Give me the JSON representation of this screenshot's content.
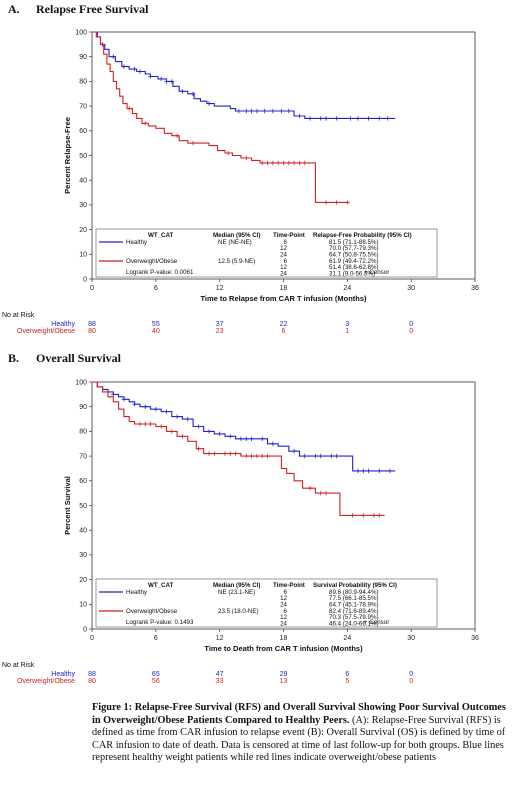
{
  "chart_data": [
    {
      "type": "line",
      "panel_letter": "A.",
      "panel_title": "Relapse Free Survival",
      "xlabel": "Time to Relapse from CAR T infusion (Months)",
      "ylabel": "Percent Relapse-Free",
      "xlim": [
        0,
        36
      ],
      "ylim": [
        0,
        100
      ],
      "xticks": [
        0,
        6,
        12,
        18,
        24,
        30,
        36
      ],
      "yticks": [
        0,
        10,
        20,
        30,
        40,
        50,
        60,
        70,
        80,
        90,
        100
      ],
      "grid": false,
      "colors": {
        "Healthy": "#2222cc",
        "Overweight/Obese": "#cc2222"
      },
      "series": [
        {
          "name": "Healthy",
          "color": "#2222cc",
          "steps": [
            [
              0,
              100
            ],
            [
              0.5,
              98
            ],
            [
              0.8,
              95
            ],
            [
              1.2,
              93
            ],
            [
              1.6,
              90
            ],
            [
              2.2,
              88
            ],
            [
              2.8,
              86
            ],
            [
              3.5,
              85
            ],
            [
              4.2,
              84
            ],
            [
              5,
              83
            ],
            [
              5.5,
              82
            ],
            [
              6.2,
              81
            ],
            [
              7,
              80
            ],
            [
              7.6,
              78
            ],
            [
              8.2,
              76
            ],
            [
              9,
              75
            ],
            [
              9.6,
              73
            ],
            [
              10.2,
              72
            ],
            [
              10.8,
              71
            ],
            [
              11.5,
              70
            ],
            [
              12.2,
              70
            ],
            [
              13,
              69
            ],
            [
              13.5,
              68
            ],
            [
              14.5,
              68
            ],
            [
              16,
              68
            ],
            [
              19,
              66
            ],
            [
              20,
              65
            ],
            [
              28.5,
              65
            ]
          ],
          "censor": [
            1,
            2,
            3,
            4,
            4.5,
            5.5,
            6.5,
            7,
            7.5,
            8.5,
            9.5,
            11,
            13.8,
            14.5,
            15,
            15.5,
            16.2,
            17,
            17.8,
            18.5,
            19.5,
            20.5,
            21.5,
            22,
            23,
            24.3,
            25,
            26,
            27,
            27.8
          ]
        },
        {
          "name": "Overweight/Obese",
          "color": "#cc2222",
          "steps": [
            [
              0,
              100
            ],
            [
              0.4,
              98
            ],
            [
              0.8,
              95
            ],
            [
              1.1,
              91
            ],
            [
              1.4,
              87
            ],
            [
              1.7,
              84
            ],
            [
              2,
              80
            ],
            [
              2.3,
              77
            ],
            [
              2.6,
              74
            ],
            [
              2.9,
              71
            ],
            [
              3.3,
              69
            ],
            [
              3.8,
              67
            ],
            [
              4.2,
              65
            ],
            [
              4.7,
              63
            ],
            [
              5.3,
              62
            ],
            [
              6,
              61
            ],
            [
              6.8,
              59
            ],
            [
              7.5,
              58
            ],
            [
              8.2,
              56
            ],
            [
              9,
              55
            ],
            [
              10,
              55
            ],
            [
              11,
              54
            ],
            [
              11.8,
              52
            ],
            [
              12.5,
              51
            ],
            [
              13.2,
              50
            ],
            [
              14,
              49
            ],
            [
              15,
              48
            ],
            [
              15.8,
              47
            ],
            [
              20.5,
              47
            ],
            [
              21,
              31
            ],
            [
              24.2,
              31
            ]
          ],
          "censor": [
            3.5,
            5,
            8,
            9.5,
            12.8,
            14.5,
            16,
            16.5,
            17,
            17.5,
            18,
            18.5,
            19,
            19.5,
            20,
            22,
            23,
            24
          ]
        }
      ],
      "legend": {
        "header": [
          "WT_CAT",
          "Median (95% CI)",
          "Time-Point",
          "Relapse-Free Probability (95% CI)"
        ],
        "rows": [
          {
            "group": "Healthy",
            "median": "NE (NE-NE)",
            "tp": [
              "6",
              "12",
              "24"
            ],
            "prob": [
              "81.5 (71.1-88.5%)",
              "70.0 (57.7-79.3%)",
              "64.7 (50.8-75.5%)"
            ]
          },
          {
            "group": "Overweight/Obese",
            "median": "12.5 (5.9-NE)",
            "tp": [
              "6",
              "12",
              "24"
            ],
            "prob": [
              "61.9 (49.4-72.2%)",
              "51.4 (38.6-62.8%)",
              "31.1 (9.0-56.8%)"
            ]
          }
        ],
        "logrank": "Logrank P-value: 0.0061",
        "censor": "+ Censor"
      },
      "risk": {
        "title": "No at Risk",
        "rows": [
          {
            "label": "Healthy",
            "values": [
              "88",
              "55",
              "37",
              "22",
              "3",
              "0"
            ]
          },
          {
            "label": "Overweight/Obese",
            "values": [
              "80",
              "40",
              "23",
              "6",
              "1",
              "0"
            ]
          }
        ]
      }
    },
    {
      "type": "line",
      "panel_letter": "B.",
      "panel_title": "Overall Survival",
      "xlabel": "Time to Death from CAR T infusion (Months)",
      "ylabel": "Percent Survival",
      "xlim": [
        0,
        36
      ],
      "ylim": [
        0,
        100
      ],
      "xticks": [
        0,
        6,
        12,
        18,
        24,
        30,
        36
      ],
      "yticks": [
        0,
        10,
        20,
        30,
        40,
        50,
        60,
        70,
        80,
        90,
        100
      ],
      "grid": false,
      "colors": {
        "Healthy": "#2222cc",
        "Overweight/Obese": "#cc2222"
      },
      "series": [
        {
          "name": "Healthy",
          "color": "#2222cc",
          "steps": [
            [
              0,
              100
            ],
            [
              0.5,
              98
            ],
            [
              1,
              97
            ],
            [
              1.5,
              96
            ],
            [
              2,
              95
            ],
            [
              2.5,
              94
            ],
            [
              3,
              93
            ],
            [
              3.5,
              92
            ],
            [
              4,
              91
            ],
            [
              4.5,
              90
            ],
            [
              5.5,
              89
            ],
            [
              6.5,
              88
            ],
            [
              7.5,
              86
            ],
            [
              8.5,
              85
            ],
            [
              9.5,
              82
            ],
            [
              10.5,
              80
            ],
            [
              11.5,
              79
            ],
            [
              12.5,
              78
            ],
            [
              13.5,
              77
            ],
            [
              15,
              77
            ],
            [
              16.5,
              75
            ],
            [
              17.5,
              74
            ],
            [
              18.5,
              72
            ],
            [
              19.5,
              70
            ],
            [
              20.5,
              70
            ],
            [
              22,
              70
            ],
            [
              23.5,
              70
            ],
            [
              24.5,
              64
            ],
            [
              28.5,
              64
            ]
          ],
          "censor": [
            2,
            3,
            4,
            5,
            6,
            7,
            8,
            9,
            10,
            11,
            12,
            13,
            14,
            14.5,
            15,
            16,
            17,
            19,
            20,
            21,
            21.5,
            22.5,
            23,
            25,
            25.5,
            26,
            27,
            28
          ]
        },
        {
          "name": "Overweight/Obese",
          "color": "#cc2222",
          "steps": [
            [
              0,
              100
            ],
            [
              0.5,
              98
            ],
            [
              1,
              96
            ],
            [
              1.5,
              94
            ],
            [
              2,
              92
            ],
            [
              2.5,
              89
            ],
            [
              3,
              86
            ],
            [
              3.5,
              84
            ],
            [
              4,
              83
            ],
            [
              5,
              83
            ],
            [
              6,
              82
            ],
            [
              7,
              80
            ],
            [
              8,
              78
            ],
            [
              9,
              76
            ],
            [
              9.8,
              73
            ],
            [
              10.5,
              71
            ],
            [
              12,
              71
            ],
            [
              14,
              70
            ],
            [
              15.5,
              70
            ],
            [
              17,
              70
            ],
            [
              17.8,
              65
            ],
            [
              18.3,
              63
            ],
            [
              19,
              60
            ],
            [
              19.8,
              57
            ],
            [
              21,
              55
            ],
            [
              22.5,
              55
            ],
            [
              23.3,
              46
            ],
            [
              27.5,
              46
            ]
          ],
          "censor": [
            4.5,
            5,
            5.5,
            6.5,
            7.5,
            8.5,
            10,
            11,
            11.5,
            12.5,
            13,
            13.5,
            14.5,
            15,
            15.5,
            16,
            16.5,
            20.5,
            21.5,
            22,
            24.5,
            25.5,
            26.5,
            27
          ]
        }
      ],
      "legend": {
        "header": [
          "WT_CAT",
          "Median (95% CI)",
          "Time-Point",
          "Survival Probability (95% CI)"
        ],
        "rows": [
          {
            "group": "Healthy",
            "median": "NE (23.1-NE)",
            "tp": [
              "6",
              "12",
              "24"
            ],
            "prob": [
              "89.6 (80.9-94.4%)",
              "77.5 (66.1-85.5%)",
              "64.7 (45.1-78.9%)"
            ]
          },
          {
            "group": "Overweight/Obese",
            "median": "23.5 (18.0-NE)",
            "tp": [
              "6",
              "12",
              "24"
            ],
            "prob": [
              "82.4 (71.6-89.4%)",
              "70.3 (57.5-79.9%)",
              "46.4 (24.0-66.1%)"
            ]
          }
        ],
        "logrank": "Logrank P-value: 0.1493",
        "censor": "+ Censor"
      },
      "risk": {
        "title": "No at Risk",
        "rows": [
          {
            "label": "Healthy",
            "values": [
              "88",
              "65",
              "47",
              "29",
              "6",
              "0"
            ]
          },
          {
            "label": "Overweight/Obese",
            "values": [
              "80",
              "56",
              "33",
              "13",
              "5",
              "0"
            ]
          }
        ]
      }
    }
  ],
  "caption": {
    "bold": "Figure 1: Relapse-Free Survival (RFS) and Overall Survival Showing Poor Survival Outcomes in Overweight/Obese Patients Compared to Healthy Peers.",
    "text": " (A): Relapse-Free Survival (RFS) is defined as time from CAR infusion to relapse event (B): Overall Survival (OS) is defined by time of CAR infusion to date of death. Data is censored at time of last follow-up for both groups. Blue lines represent healthy weight patients while red lines indicate overweight/obese patients"
  }
}
